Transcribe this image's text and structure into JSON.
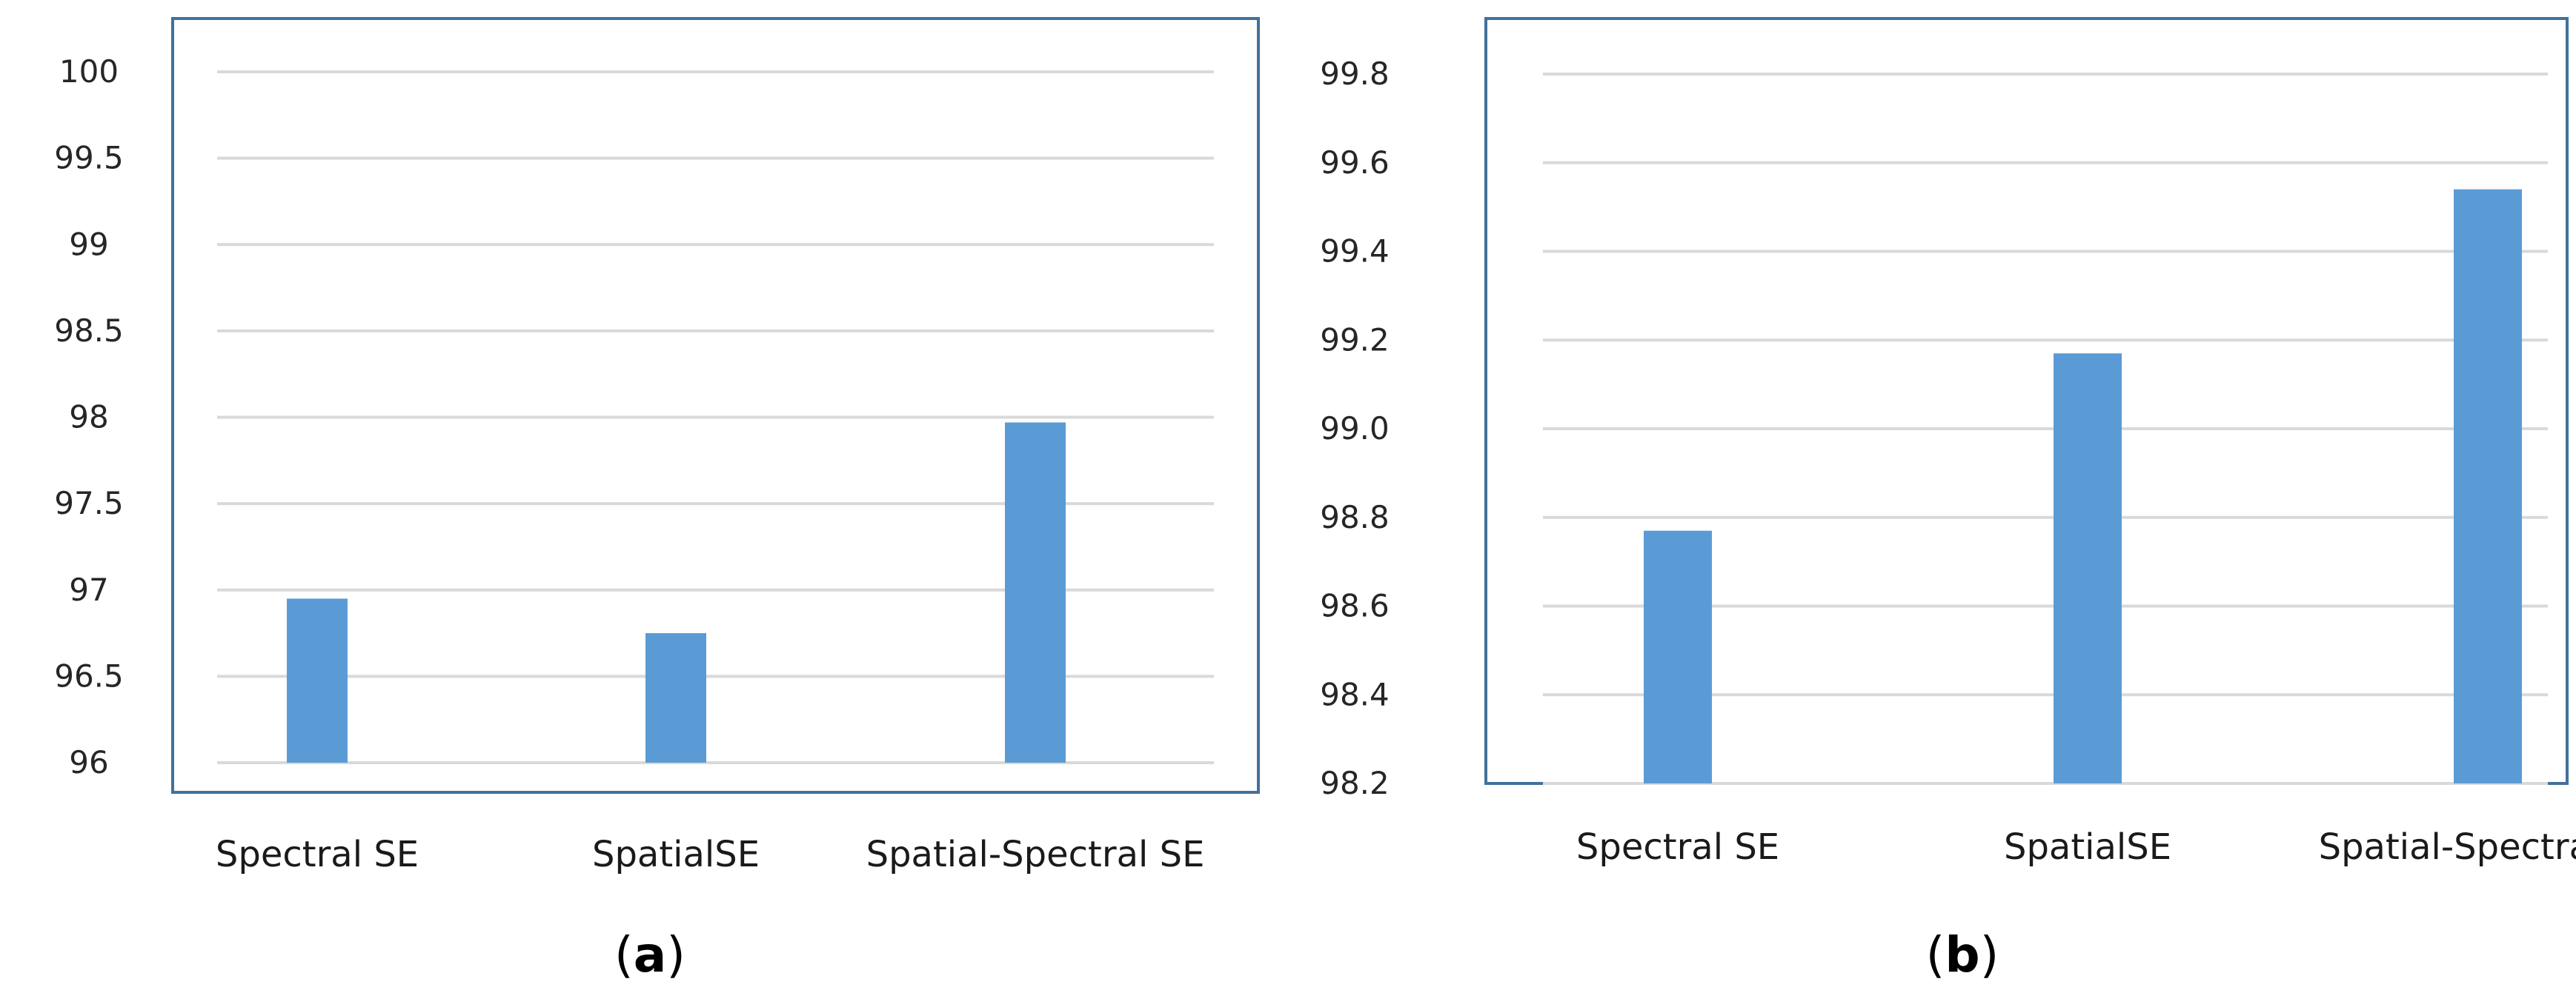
{
  "colors": {
    "bar": "#5b9bd5",
    "grid": "#d9d9d9",
    "frame": "#41719c"
  },
  "chart_data": [
    {
      "type": "bar",
      "caption_pre": "(",
      "caption_letter": "a",
      "caption_post": ")",
      "categories": [
        "Spectral SE",
        "SpatialSE",
        "Spatial-Spectral SE"
      ],
      "values": [
        96.95,
        96.75,
        97.97
      ],
      "ylim": [
        96,
        100
      ],
      "yticks": [
        "96",
        "96.5",
        "97",
        "97.5",
        "98",
        "98.5",
        "99",
        "99.5",
        "100"
      ],
      "grid": true,
      "legend": "none",
      "xlabel": "",
      "ylabel": "",
      "title": ""
    },
    {
      "type": "bar",
      "caption_pre": "(",
      "caption_letter": "b",
      "caption_post": ")",
      "categories": [
        "Spectral SE",
        "SpatialSE",
        "Spatial-Spectral SE"
      ],
      "values": [
        98.77,
        99.17,
        99.54
      ],
      "ylim": [
        98.2,
        99.8
      ],
      "yticks": [
        "98.2",
        "98.4",
        "98.6",
        "98.8",
        "99.0",
        "99.2",
        "99.4",
        "99.6",
        "99.8"
      ],
      "grid": true,
      "legend": "none",
      "xlabel": "",
      "ylabel": "",
      "title": ""
    }
  ]
}
